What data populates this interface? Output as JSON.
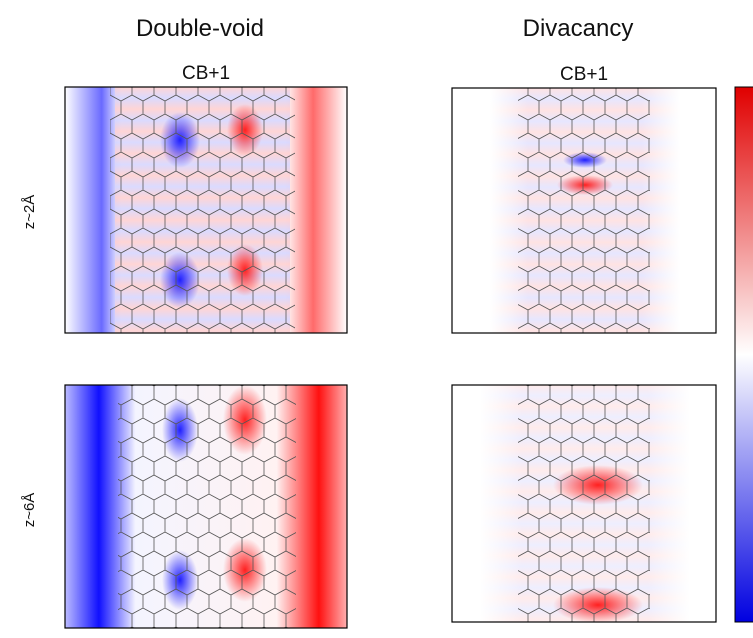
{
  "columns": [
    {
      "title": "Double-void",
      "subtitle": "CB+1"
    },
    {
      "title": "Divacancy",
      "subtitle": "CB+1"
    }
  ],
  "rows": [
    {
      "label": "z~2Å"
    },
    {
      "label": "z~6Å"
    }
  ]
}
